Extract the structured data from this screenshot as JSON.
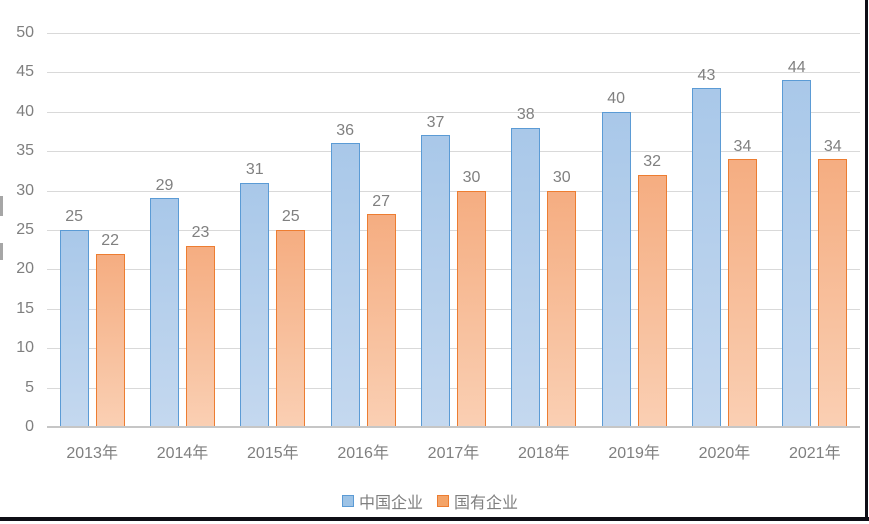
{
  "chart_data": {
    "type": "bar",
    "title": "",
    "categories": [
      "2013年",
      "2014年",
      "2015年",
      "2016年",
      "2017年",
      "2018年",
      "2019年",
      "2020年",
      "2021年"
    ],
    "series": [
      {
        "key": "china-enterprises",
        "name": "中国企业",
        "values": [
          25,
          29,
          31,
          36,
          37,
          38,
          40,
          43,
          44
        ],
        "fill_top": "#a9c8e9",
        "fill_bottom": "#c4d8ef",
        "border_color": "#5b9bd5",
        "legend_fill": "#9dc3e6"
      },
      {
        "key": "state-owned-enterprises",
        "name": "国有企业",
        "values": [
          22,
          23,
          25,
          27,
          30,
          30,
          32,
          34,
          34
        ],
        "fill_top": "#f5ad81",
        "fill_bottom": "#facfb3",
        "border_color": "#ed7d31",
        "legend_fill": "#f4a468"
      }
    ],
    "xlabel": "",
    "ylabel": "",
    "ylim": [
      0,
      50
    ],
    "yticks": [
      0,
      5,
      10,
      15,
      20,
      25,
      30,
      35,
      40,
      45,
      50
    ],
    "grid": true,
    "data_labels": true,
    "legend_position": "bottom",
    "colors": {
      "gridline": "#d9d9d9",
      "axis_line": "#c6c6c6",
      "tick_text": "#7f7f7f",
      "label_text": "#808080",
      "frame_border": "#0e0e16"
    }
  }
}
